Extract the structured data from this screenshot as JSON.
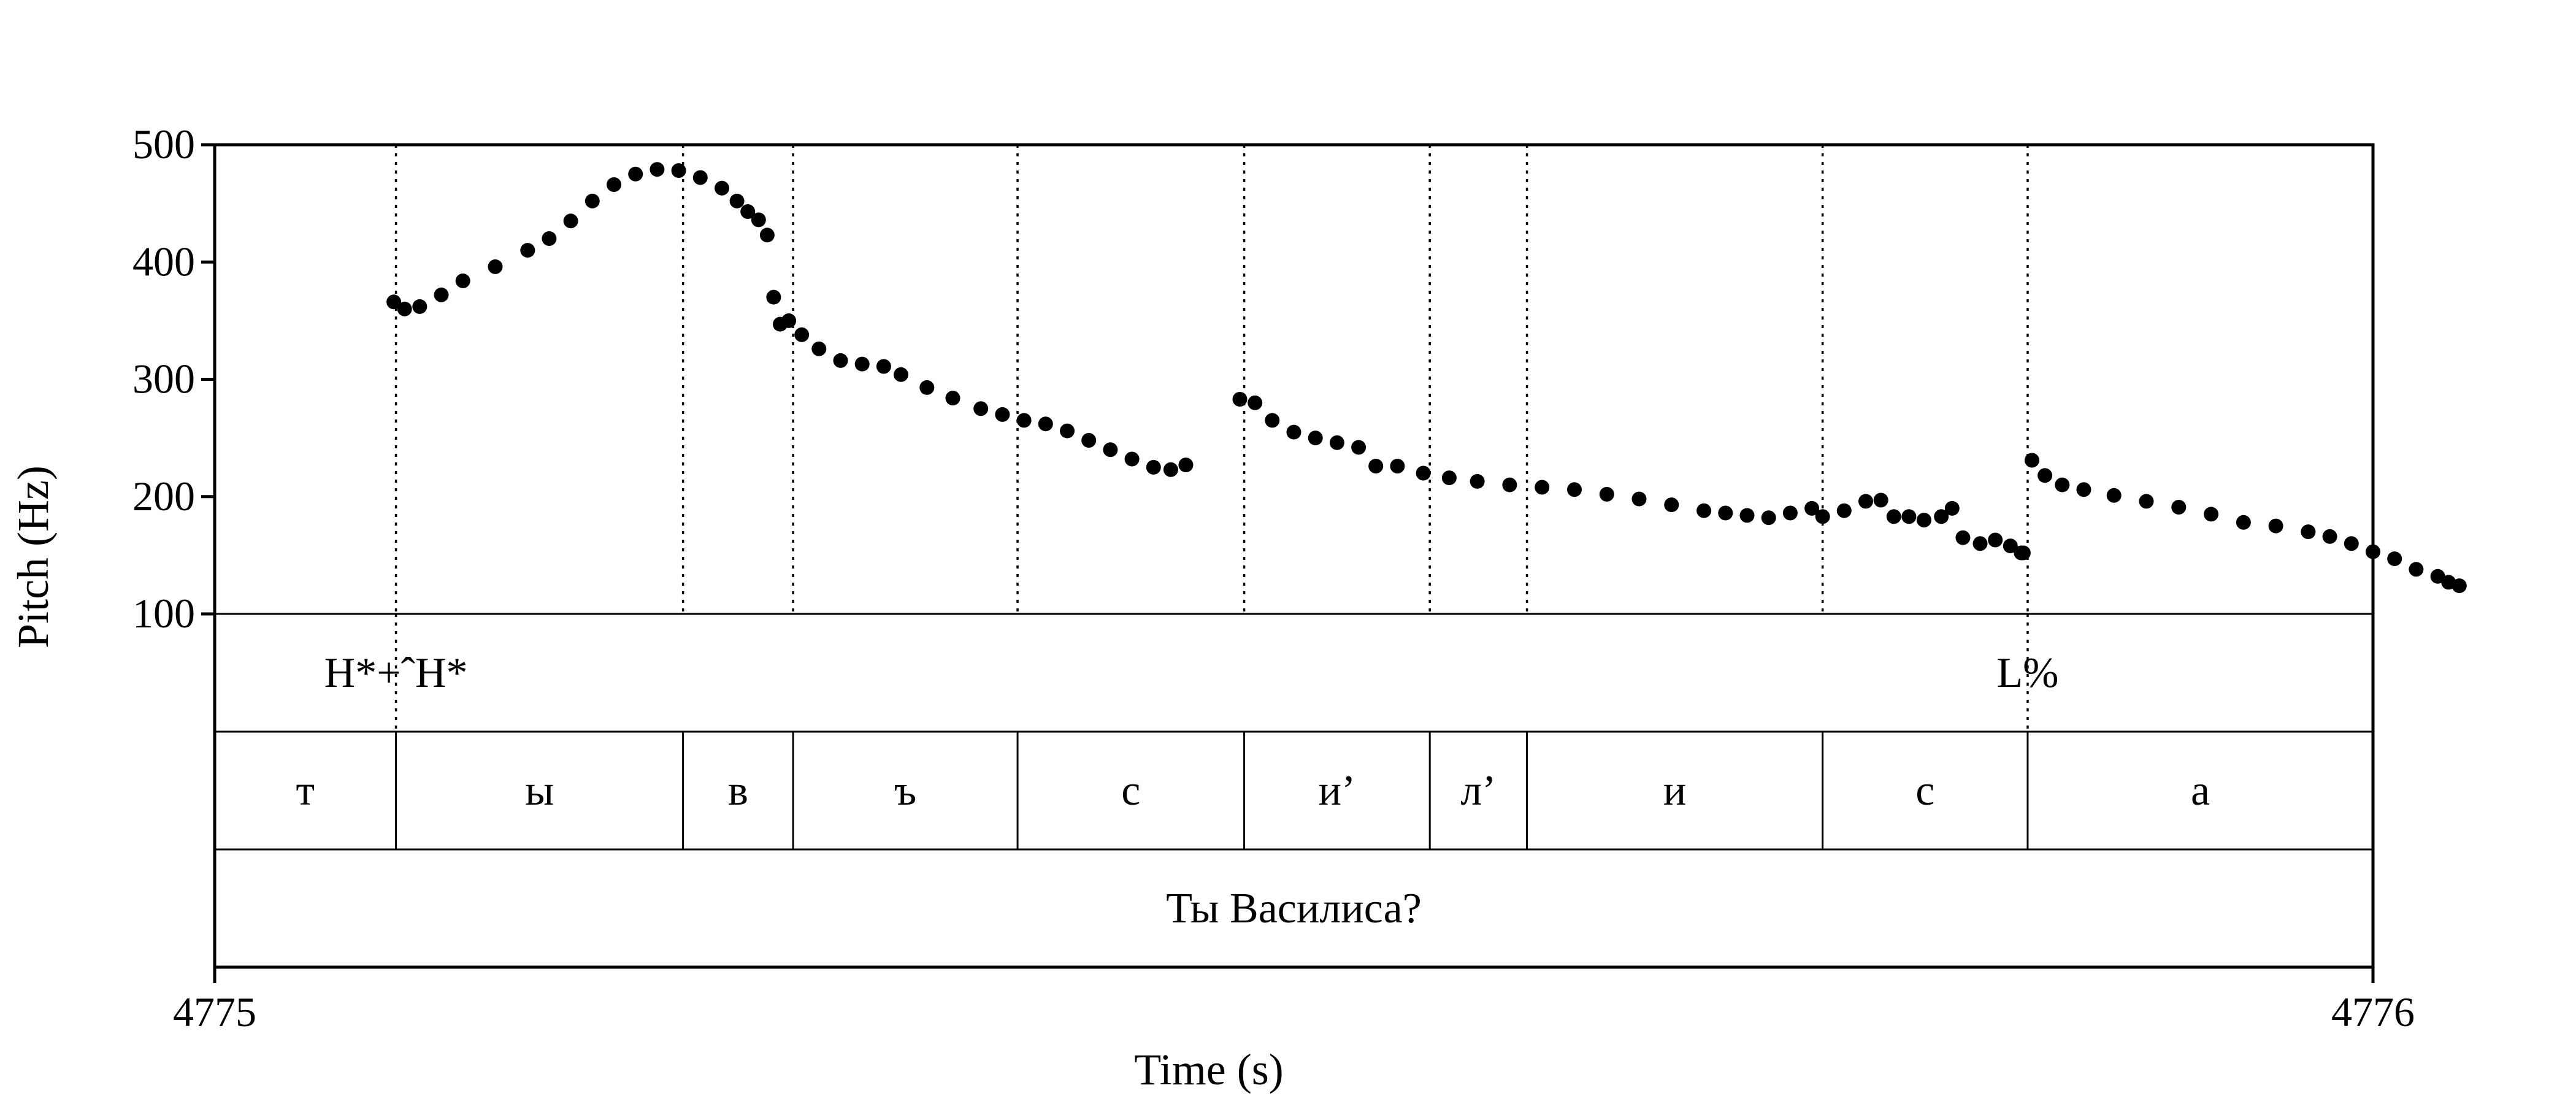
{
  "chart_data": {
    "type": "scatter",
    "title": "",
    "xlabel": "Time (s)",
    "ylabel": "Pitch (Hz)",
    "xlim": [
      4775,
      4776
    ],
    "ylim": [
      100,
      500
    ],
    "x_tick_labels": [
      "4775",
      "4776"
    ],
    "y_ticks": [
      100,
      200,
      300,
      400,
      500
    ],
    "y_tick_labels": [
      "100",
      "200",
      "300",
      "400",
      "500"
    ],
    "grid": false,
    "legend": "none",
    "color": "#000000",
    "pitch_contours": [
      [
        [
          0.083,
          366
        ],
        [
          0.088,
          360
        ],
        [
          0.095,
          362
        ],
        [
          0.105,
          372
        ],
        [
          0.115,
          384
        ],
        [
          0.13,
          396
        ],
        [
          0.145,
          410
        ],
        [
          0.155,
          420
        ],
        [
          0.165,
          435
        ],
        [
          0.175,
          452
        ],
        [
          0.185,
          466
        ],
        [
          0.195,
          475
        ],
        [
          0.205,
          479
        ],
        [
          0.215,
          478
        ],
        [
          0.225,
          472
        ],
        [
          0.235,
          463
        ],
        [
          0.242,
          452
        ],
        [
          0.247,
          443
        ],
        [
          0.252,
          436
        ],
        [
          0.256,
          423
        ]
      ],
      [
        [
          0.259,
          370
        ],
        [
          0.262,
          347
        ],
        [
          0.266,
          350
        ],
        [
          0.272,
          338
        ],
        [
          0.28,
          326
        ],
        [
          0.29,
          316
        ],
        [
          0.3,
          313
        ],
        [
          0.31,
          311
        ],
        [
          0.318,
          304
        ],
        [
          0.33,
          293
        ],
        [
          0.342,
          284
        ],
        [
          0.355,
          275
        ],
        [
          0.365,
          270
        ],
        [
          0.375,
          265
        ],
        [
          0.385,
          262
        ],
        [
          0.395,
          256
        ],
        [
          0.405,
          248
        ],
        [
          0.415,
          240
        ],
        [
          0.425,
          232
        ],
        [
          0.435,
          225
        ],
        [
          0.443,
          223
        ],
        [
          0.45,
          227
        ]
      ],
      [
        [
          0.475,
          283
        ],
        [
          0.482,
          280
        ],
        [
          0.49,
          265
        ],
        [
          0.5,
          255
        ],
        [
          0.51,
          250
        ],
        [
          0.52,
          246
        ],
        [
          0.53,
          242
        ],
        [
          0.538,
          226
        ],
        [
          0.548,
          226
        ],
        [
          0.56,
          220
        ],
        [
          0.572,
          216
        ],
        [
          0.585,
          213
        ],
        [
          0.6,
          210
        ],
        [
          0.615,
          208
        ],
        [
          0.63,
          206
        ],
        [
          0.645,
          202
        ],
        [
          0.66,
          198
        ],
        [
          0.675,
          193
        ],
        [
          0.69,
          188
        ],
        [
          0.7,
          186
        ],
        [
          0.71,
          184
        ],
        [
          0.72,
          182
        ],
        [
          0.73,
          186
        ],
        [
          0.74,
          190
        ],
        [
          0.745,
          183
        ],
        [
          0.755,
          188
        ],
        [
          0.765,
          196
        ],
        [
          0.772,
          197
        ],
        [
          0.778,
          183
        ],
        [
          0.785,
          183
        ],
        [
          0.792,
          180
        ],
        [
          0.8,
          183
        ],
        [
          0.805,
          190
        ],
        [
          0.81,
          165
        ],
        [
          0.818,
          160
        ],
        [
          0.825,
          163
        ],
        [
          0.832,
          158
        ],
        [
          0.838,
          152
        ]
      ],
      [
        [
          0.837,
          152
        ]
      ],
      [
        [
          0.842,
          231
        ],
        [
          0.848,
          218
        ],
        [
          0.856,
          210
        ],
        [
          0.866,
          206
        ],
        [
          0.88,
          201
        ],
        [
          0.895,
          196
        ],
        [
          0.91,
          191
        ],
        [
          0.925,
          185
        ],
        [
          0.94,
          178
        ],
        [
          0.955,
          175
        ],
        [
          0.97,
          170
        ],
        [
          0.98,
          166
        ],
        [
          0.99,
          160
        ],
        [
          1.0,
          153
        ],
        [
          1.01,
          147
        ],
        [
          1.02,
          138
        ],
        [
          1.03,
          132
        ],
        [
          1.035,
          127
        ],
        [
          1.04,
          124
        ]
      ]
    ],
    "tone_tier": {
      "boundaries": [
        0.084,
        0.84
      ],
      "labels": [
        {
          "text": "H*+ˆH*",
          "x": 0.084
        },
        {
          "text": "L%",
          "x": 0.84
        }
      ]
    },
    "segment_tier": {
      "boundaries": [
        0,
        0.084,
        0.217,
        0.268,
        0.372,
        0.477,
        0.563,
        0.608,
        0.745,
        0.84,
        1
      ],
      "segments": [
        "т",
        "ы",
        "в",
        "ъ",
        "с",
        "и’",
        "л’",
        "и",
        "с",
        "а"
      ]
    },
    "word_tier": {
      "boundaries": [
        0,
        1
      ],
      "words": [
        "Ты Василиса?"
      ]
    }
  }
}
